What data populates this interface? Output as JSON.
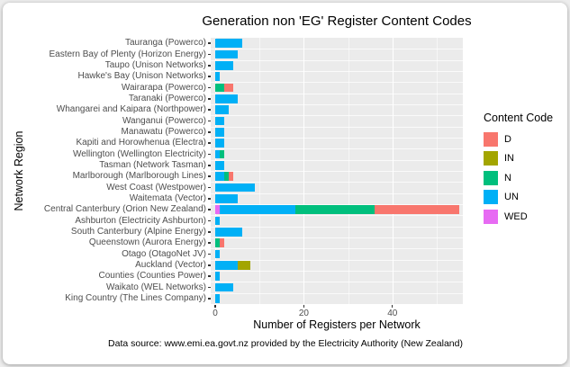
{
  "title": "Generation non 'EG' Register Content Codes",
  "caption": "Data source: www.emi.ea.govt.nz provided by the Electricity Authority (New Zealand)",
  "legend": {
    "title": "Content Code",
    "items": [
      {
        "label": "D",
        "color": "#F8766D"
      },
      {
        "label": "IN",
        "color": "#A3A500"
      },
      {
        "label": "N",
        "color": "#00BF7D"
      },
      {
        "label": "UN",
        "color": "#00B0F6"
      },
      {
        "label": "WED",
        "color": "#E76BF3"
      }
    ]
  },
  "chart_data": {
    "type": "bar",
    "orientation": "horizontal",
    "stacked": true,
    "title": "Generation non 'EG' Register Content Codes",
    "xlabel": "Number of Registers per Network",
    "ylabel": "Network Region",
    "xlim": [
      0,
      55
    ],
    "xticks": [
      0,
      20,
      40
    ],
    "xticks_minor": [
      10,
      30,
      50
    ],
    "grid": true,
    "panel_background": "#EBEBEB",
    "legend_position": "right",
    "legend_title": "Content Code",
    "stack_order_left_to_right": [
      "WED",
      "UN",
      "N",
      "IN",
      "D"
    ],
    "colors": {
      "D": "#F8766D",
      "IN": "#A3A500",
      "N": "#00BF7D",
      "UN": "#00B0F6",
      "WED": "#E76BF3"
    },
    "categories": [
      "Tauranga (Powerco)",
      "Eastern Bay of Plenty (Horizon Energy)",
      "Taupo (Unison Networks)",
      "Hawke's Bay (Unison Networks)",
      "Wairarapa (Powerco)",
      "Taranaki (Powerco)",
      "Whangarei and Kaipara (Northpower)",
      "Wanganui (Powerco)",
      "Manawatu (Powerco)",
      "Kapiti and Horowhenua (Electra)",
      "Wellington (Wellington Electricity)",
      "Tasman (Network Tasman)",
      "Marlborough (Marlborough Lines)",
      "West Coast (Westpower)",
      "Waitemata (Vector)",
      "Central Canterbury (Orion New Zealand)",
      "Ashburton (Electricity Ashburton)",
      "South Canterbury (Alpine Energy)",
      "Queenstown (Aurora Energy)",
      "Otago (OtagoNet JV)",
      "Auckland (Vector)",
      "Counties (Counties Power)",
      "Waikato (WEL Networks)",
      "King Country (The Lines Company)"
    ],
    "series": [
      {
        "name": "WED",
        "values": [
          0,
          0,
          0,
          0,
          0,
          0,
          0,
          0,
          0,
          0,
          0,
          0,
          0,
          0,
          0,
          1,
          0,
          0,
          0,
          0,
          0,
          0,
          0,
          0
        ]
      },
      {
        "name": "UN",
        "values": [
          6,
          5,
          4,
          1,
          0,
          5,
          3,
          2,
          2,
          2,
          1,
          2,
          2,
          9,
          5,
          17,
          1,
          6,
          0,
          1,
          5,
          1,
          4,
          1
        ]
      },
      {
        "name": "N",
        "values": [
          0,
          0,
          0,
          0,
          2,
          0,
          0,
          0,
          0,
          0,
          1,
          0,
          1,
          0,
          0,
          18,
          0,
          0,
          1,
          0,
          0,
          0,
          0,
          0
        ]
      },
      {
        "name": "IN",
        "values": [
          0,
          0,
          0,
          0,
          0,
          0,
          0,
          0,
          0,
          0,
          0,
          0,
          0,
          0,
          0,
          0,
          0,
          0,
          0,
          0,
          3,
          0,
          0,
          0
        ]
      },
      {
        "name": "D",
        "values": [
          0,
          0,
          0,
          0,
          2,
          0,
          0,
          0,
          0,
          0,
          0,
          0,
          1,
          0,
          0,
          19,
          0,
          0,
          1,
          0,
          0,
          0,
          0,
          0
        ]
      }
    ]
  }
}
